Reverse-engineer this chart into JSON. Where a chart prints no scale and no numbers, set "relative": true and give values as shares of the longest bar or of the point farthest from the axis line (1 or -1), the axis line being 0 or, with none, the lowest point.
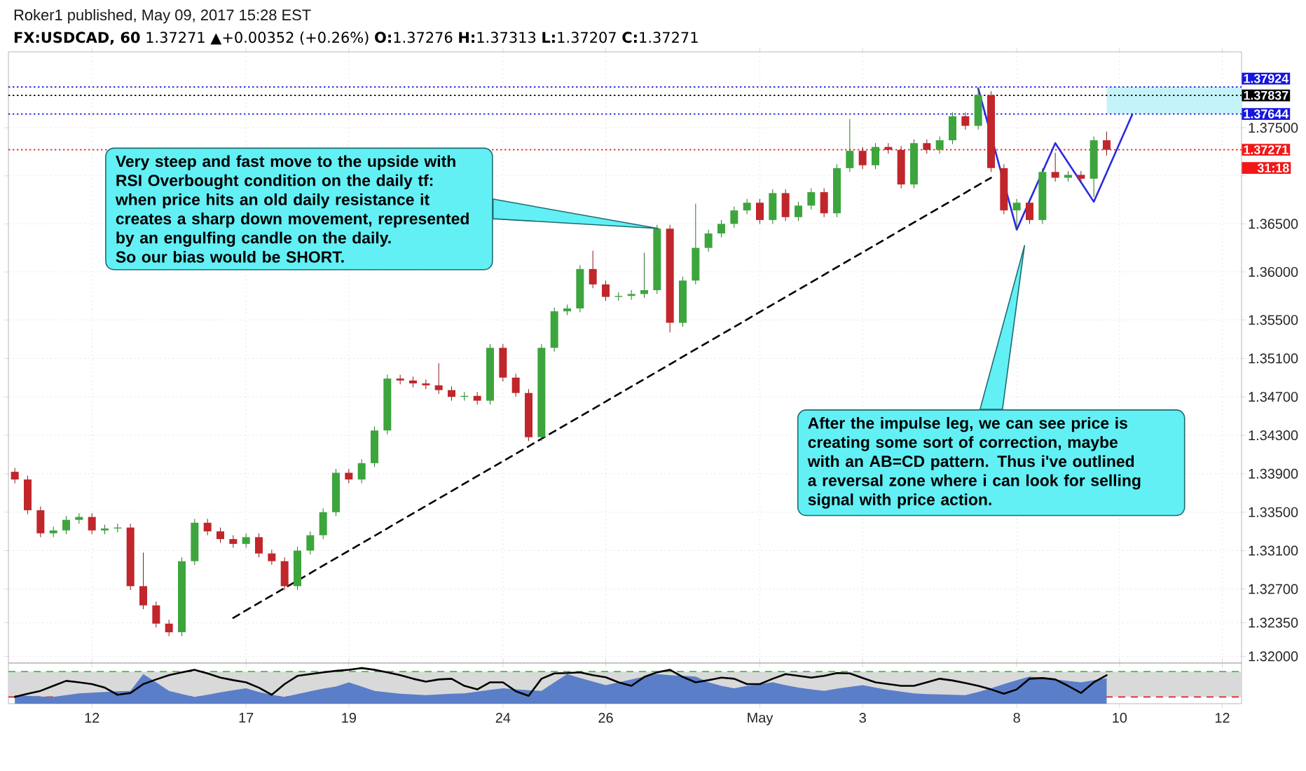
{
  "chart_data": [
    {
      "type": "candlestick",
      "title": "**FX:USDCAD, 60** 1.37271 ▲+0.00352 (+0.26%) **O:**1.37276 **H:**1.37313 **L:**1.37207 **C:**1.37271",
      "subtitle": "Roker1 published, May 09, 2017 15:28 EST",
      "categories": [
        null,
        null,
        null,
        null,
        null,
        null,
        null,
        null,
        null,
        null,
        null,
        null,
        null,
        null,
        null,
        null,
        null,
        null,
        null,
        null,
        null,
        null,
        null,
        null,
        null,
        null,
        null,
        null,
        null,
        null,
        null,
        null,
        null,
        null,
        null,
        null,
        null,
        null,
        null,
        null,
        null,
        null,
        null,
        null,
        null,
        null,
        null,
        null,
        null,
        null,
        null,
        null,
        null,
        null,
        null,
        null,
        null,
        null,
        null,
        null,
        null,
        null,
        null,
        null,
        null,
        null,
        null,
        null,
        null,
        null,
        null,
        null,
        null,
        null,
        null,
        null,
        null,
        null,
        null,
        null,
        null,
        null,
        null,
        null,
        null,
        null,
        null,
        null,
        null,
        null,
        null,
        null,
        null,
        null,
        null,
        null
      ],
      "ohlc": [
        [
          1.3392,
          1.3396,
          1.338,
          1.3384
        ],
        [
          1.3384,
          1.3388,
          1.3348,
          1.3352
        ],
        [
          1.3352,
          1.3356,
          1.3324,
          1.3328
        ],
        [
          1.3328,
          1.3335,
          1.3324,
          1.3331
        ],
        [
          1.3331,
          1.3346,
          1.3327,
          1.3342
        ],
        [
          1.3342,
          1.3349,
          1.3338,
          1.3345
        ],
        [
          1.3345,
          1.3349,
          1.3327,
          1.3331
        ],
        [
          1.3331,
          1.3337,
          1.3327,
          1.3333
        ],
        [
          1.3333,
          1.3338,
          1.3329,
          1.3334
        ],
        [
          1.3334,
          1.3338,
          1.3269,
          1.3273
        ],
        [
          1.3273,
          1.3308,
          1.3249,
          1.3253
        ],
        [
          1.3253,
          1.3257,
          1.323,
          1.3234
        ],
        [
          1.3234,
          1.3238,
          1.3221,
          1.3225
        ],
        [
          1.3225,
          1.3303,
          1.3221,
          1.3299
        ],
        [
          1.3299,
          1.3343,
          1.3295,
          1.3339
        ],
        [
          1.3339,
          1.3343,
          1.3326,
          1.333
        ],
        [
          1.333,
          1.3334,
          1.3318,
          1.3322
        ],
        [
          1.3322,
          1.3326,
          1.3313,
          1.3317
        ],
        [
          1.3317,
          1.3328,
          1.3313,
          1.3324
        ],
        [
          1.3324,
          1.3328,
          1.3303,
          1.3307
        ],
        [
          1.3307,
          1.3311,
          1.3295,
          1.3299
        ],
        [
          1.3299,
          1.3303,
          1.3269,
          1.3273
        ],
        [
          1.3273,
          1.3314,
          1.3269,
          1.331
        ],
        [
          1.331,
          1.333,
          1.3306,
          1.3326
        ],
        [
          1.3326,
          1.3354,
          1.3322,
          1.335
        ],
        [
          1.335,
          1.3395,
          1.3346,
          1.3391
        ],
        [
          1.3391,
          1.3395,
          1.338,
          1.3384
        ],
        [
          1.3384,
          1.3405,
          1.338,
          1.3401
        ],
        [
          1.3401,
          1.3439,
          1.3397,
          1.3435
        ],
        [
          1.3435,
          1.3493,
          1.3431,
          1.3489
        ],
        [
          1.3489,
          1.3493,
          1.3483,
          1.3487
        ],
        [
          1.3487,
          1.3491,
          1.348,
          1.3484
        ],
        [
          1.3484,
          1.3488,
          1.3478,
          1.3482
        ],
        [
          1.3482,
          1.3505,
          1.3473,
          1.3477
        ],
        [
          1.3477,
          1.3481,
          1.3466,
          1.347
        ],
        [
          1.347,
          1.3475,
          1.3466,
          1.3471
        ],
        [
          1.3471,
          1.3475,
          1.3462,
          1.3466
        ],
        [
          1.3466,
          1.3525,
          1.3462,
          1.3521
        ],
        [
          1.3521,
          1.3525,
          1.3486,
          1.349
        ],
        [
          1.349,
          1.3494,
          1.347,
          1.3474
        ],
        [
          1.3474,
          1.3478,
          1.3424,
          1.3428
        ],
        [
          1.3428,
          1.3525,
          1.3424,
          1.3521
        ],
        [
          1.3521,
          1.3563,
          1.3517,
          1.3559
        ],
        [
          1.3559,
          1.3566,
          1.3555,
          1.3562
        ],
        [
          1.3562,
          1.3607,
          1.3558,
          1.3603
        ],
        [
          1.3603,
          1.3622,
          1.3583,
          1.3587
        ],
        [
          1.3587,
          1.3591,
          1.357,
          1.3574
        ],
        [
          1.3574,
          1.3579,
          1.357,
          1.3575
        ],
        [
          1.3575,
          1.3581,
          1.3571,
          1.3577
        ],
        [
          1.3577,
          1.362,
          1.3573,
          1.3581
        ],
        [
          1.3581,
          1.3649,
          1.3577,
          1.3645
        ],
        [
          1.3645,
          1.3649,
          1.3537,
          1.3547
        ],
        [
          1.3547,
          1.3595,
          1.3543,
          1.3591
        ],
        [
          1.3591,
          1.3671,
          1.3587,
          1.3625
        ],
        [
          1.3625,
          1.3644,
          1.3621,
          1.364
        ],
        [
          1.364,
          1.3654,
          1.3636,
          1.365
        ],
        [
          1.365,
          1.3668,
          1.3646,
          1.3664
        ],
        [
          1.3664,
          1.3676,
          1.366,
          1.3672
        ],
        [
          1.3672,
          1.3676,
          1.365,
          1.3654
        ],
        [
          1.3654,
          1.3686,
          1.365,
          1.3682
        ],
        [
          1.3682,
          1.3686,
          1.3653,
          1.3657
        ],
        [
          1.3657,
          1.3673,
          1.3653,
          1.3669
        ],
        [
          1.3669,
          1.3687,
          1.3665,
          1.3683
        ],
        [
          1.3683,
          1.3687,
          1.3657,
          1.3661
        ],
        [
          1.3661,
          1.3712,
          1.3657,
          1.3708
        ],
        [
          1.3708,
          1.3759,
          1.3704,
          1.3726
        ],
        [
          1.3726,
          1.373,
          1.3707,
          1.3711
        ],
        [
          1.3711,
          1.3734,
          1.3707,
          1.373
        ],
        [
          1.373,
          1.3734,
          1.3723,
          1.3727
        ],
        [
          1.3727,
          1.3731,
          1.3687,
          1.3691
        ],
        [
          1.3691,
          1.3738,
          1.3687,
          1.3734
        ],
        [
          1.3734,
          1.3738,
          1.3723,
          1.3727
        ],
        [
          1.3727,
          1.3741,
          1.3723,
          1.3737
        ],
        [
          1.3737,
          1.3766,
          1.3733,
          1.3762
        ],
        [
          1.3762,
          1.3766,
          1.3748,
          1.3752
        ],
        [
          1.3752,
          1.3792,
          1.3748,
          1.3784
        ],
        [
          1.3784,
          1.3788,
          1.3704,
          1.3708
        ],
        [
          1.3708,
          1.3712,
          1.366,
          1.3664
        ],
        [
          1.3664,
          1.3676,
          1.3645,
          1.3672
        ],
        [
          1.3672,
          1.3676,
          1.365,
          1.3654
        ],
        [
          1.3654,
          1.3708,
          1.365,
          1.3704
        ],
        [
          1.3704,
          1.3724,
          1.3694,
          1.3698
        ],
        [
          1.3698,
          1.3705,
          1.3694,
          1.3701
        ],
        [
          1.3701,
          1.3705,
          1.3693,
          1.3697
        ],
        [
          1.3697,
          1.3741,
          1.3678,
          1.3737
        ],
        [
          1.3737,
          1.3746,
          1.3721,
          1.37271
        ],
        null,
        null,
        null,
        null,
        null,
        null,
        null,
        null,
        null,
        null
      ],
      "series": [
        {
          "type": "line",
          "color": "#000000",
          "line_style": "dashed",
          "values": [
            null,
            null,
            null,
            null,
            null,
            null,
            null,
            null,
            null,
            null,
            null,
            null,
            null,
            null,
            null,
            null,
            null,
            1.324,
            null,
            null,
            null,
            null,
            null,
            null,
            null,
            null,
            null,
            null,
            null,
            null,
            null,
            null,
            null,
            null,
            null,
            null,
            null,
            null,
            null,
            null,
            null,
            null,
            null,
            null,
            null,
            null,
            null,
            null,
            null,
            null,
            null,
            null,
            null,
            null,
            null,
            null,
            null,
            null,
            null,
            null,
            null,
            null,
            null,
            null,
            null,
            null,
            null,
            null,
            null,
            null,
            null,
            null,
            null,
            null,
            null,
            null,
            1.3698,
            null,
            null,
            null,
            null,
            null,
            null,
            null,
            null,
            null,
            null,
            null,
            null,
            null,
            null,
            null,
            null,
            null,
            null,
            null
          ]
        },
        {
          "type": "line",
          "color": "#2a2ae0",
          "line_style": "solid",
          "values": [
            null,
            null,
            null,
            null,
            null,
            null,
            null,
            null,
            null,
            null,
            null,
            null,
            null,
            null,
            null,
            null,
            null,
            null,
            null,
            null,
            null,
            null,
            null,
            null,
            null,
            null,
            null,
            null,
            null,
            null,
            null,
            null,
            null,
            null,
            null,
            null,
            null,
            null,
            null,
            null,
            null,
            null,
            null,
            null,
            null,
            null,
            null,
            null,
            null,
            null,
            null,
            null,
            null,
            null,
            null,
            null,
            null,
            null,
            null,
            null,
            null,
            null,
            null,
            null,
            null,
            null,
            null,
            null,
            null,
            null,
            null,
            null,
            null,
            null,
            null,
            1.3791,
            null,
            null,
            1.3644,
            null,
            null,
            1.3734,
            null,
            null,
            1.3673,
            null,
            null,
            1.3764,
            null,
            null,
            null,
            null,
            null,
            null,
            null,
            null
          ]
        }
      ],
      "ylim": [
        1.3193,
        1.3829
      ],
      "yticks": [
        {
          "value": 1.32,
          "label": "1.32000"
        },
        {
          "value": 1.3235,
          "label": "1.32350"
        },
        {
          "value": 1.327,
          "label": "1.32700"
        },
        {
          "value": 1.331,
          "label": "1.33100"
        },
        {
          "value": 1.335,
          "label": "1.33500"
        },
        {
          "value": 1.339,
          "label": "1.33900"
        },
        {
          "value": 1.343,
          "label": "1.34300"
        },
        {
          "value": 1.347,
          "label": "1.34700"
        },
        {
          "value": 1.351,
          "label": "1.35100"
        },
        {
          "value": 1.355,
          "label": "1.35500"
        },
        {
          "value": 1.36,
          "label": "1.36000"
        },
        {
          "value": 1.365,
          "label": "1.36500"
        },
        {
          "value": 1.37,
          "label": null
        },
        {
          "value": 1.375,
          "label": "1.37500"
        }
      ],
      "tick_labels": "y",
      "grid": true,
      "ref_lines": [
        {
          "axis": "y",
          "value": 1.37924,
          "label": "1.37924",
          "color": "#1515e0",
          "line_style": "dotted"
        },
        {
          "axis": "y",
          "value": 1.37837,
          "label": "1.37837",
          "color": "#000000",
          "line_style": "dotted"
        },
        {
          "axis": "y",
          "value": 1.37644,
          "label": "1.37644",
          "color": "#1515e0",
          "line_style": "dotted"
        },
        {
          "axis": "y",
          "value": 1.37271,
          "label": "1.37271",
          "color": "#f01818",
          "line_style": "dotted"
        }
      ],
      "bands": [
        {
          "axis": "y",
          "from": 1.37644,
          "to": 1.37924,
          "color": "#c4f4fa"
        }
      ],
      "annotations": [
        "Very steep and fast move to the upside with RSI Overbought condition on the daily tf: when price hits an old daily resistance it creates a sharp down movement, represented by an engulfing candle on the daily.\nSo our bias would be SHORT.",
        "After the impulse leg, we can see price is creating some sort of correction, maybe with an AB=CD pattern. Thus i've outlined a reversal zone where i can look for selling signal with price action.",
        "31:18"
      ]
    },
    {
      "type": "line",
      "relative": true,
      "categories": [
        null,
        null,
        null,
        null,
        null,
        null,
        "12",
        null,
        null,
        null,
        null,
        null,
        null,
        null,
        null,
        null,
        null,
        null,
        "17",
        null,
        null,
        null,
        null,
        null,
        null,
        null,
        "19",
        null,
        null,
        null,
        null,
        null,
        null,
        null,
        null,
        null,
        null,
        null,
        "24",
        null,
        null,
        null,
        null,
        null,
        null,
        null,
        "26",
        null,
        null,
        null,
        null,
        null,
        null,
        null,
        null,
        null,
        null,
        null,
        "May",
        null,
        null,
        null,
        null,
        null,
        null,
        null,
        "3",
        null,
        null,
        null,
        null,
        null,
        null,
        null,
        null,
        null,
        null,
        null,
        "8",
        null,
        null,
        null,
        null,
        null,
        null,
        null,
        "10",
        null,
        null,
        null,
        null,
        null,
        null,
        null,
        "12",
        null
      ],
      "tick_labels": "x",
      "series": [
        {
          "type": "area",
          "color": "#5b7ec8",
          "values": [
            0.24,
            0.22,
            0.2,
            0.19,
            0.24,
            0.29,
            0.31,
            0.33,
            0.35,
            0.36,
            0.83,
            0.6,
            0.36,
            0.27,
            0.19,
            0.25,
            0.32,
            0.38,
            0.43,
            0.33,
            0.25,
            0.19,
            0.27,
            0.35,
            0.42,
            0.48,
            0.6,
            0.48,
            0.36,
            0.32,
            0.28,
            0.26,
            0.24,
            0.26,
            0.28,
            0.29,
            0.34,
            0.39,
            0.43,
            0.4,
            0.38,
            0.36,
            0.6,
            0.83,
            0.72,
            0.62,
            0.52,
            0.6,
            0.68,
            0.76,
            0.83,
            0.8,
            0.78,
            0.76,
            0.6,
            0.5,
            0.43,
            0.5,
            0.55,
            0.6,
            0.52,
            0.45,
            0.4,
            0.36,
            0.42,
            0.47,
            0.52,
            0.45,
            0.39,
            0.34,
            0.29,
            0.27,
            0.26,
            0.25,
            0.24,
            0.33,
            0.43,
            0.55,
            0.66,
            0.76,
            0.72,
            0.68,
            0.64,
            0.6,
            0.66,
            0.71,
            null,
            null,
            null,
            null,
            null,
            null,
            null,
            null,
            null,
            null
          ]
        },
        {
          "type": "line",
          "color": "#000000",
          "values": [
            0.19,
            0.28,
            0.36,
            0.5,
            0.64,
            0.6,
            0.55,
            0.45,
            0.25,
            0.3,
            0.55,
            0.68,
            0.8,
            0.88,
            0.95,
            0.85,
            0.73,
            0.66,
            0.6,
            0.45,
            0.25,
            0.55,
            0.78,
            0.83,
            0.88,
            0.92,
            0.95,
            1,
            0.95,
            0.88,
            0.8,
            0.7,
            0.62,
            0.68,
            0.7,
            0.5,
            0.4,
            0.6,
            0.6,
            0.35,
            0.22,
            0.7,
            0.85,
            0.86,
            0.88,
            0.8,
            0.74,
            0.6,
            0.5,
            0.75,
            0.88,
            0.95,
            0.75,
            0.6,
            0.66,
            0.73,
            0.7,
            0.55,
            0.55,
            0.7,
            0.83,
            0.78,
            0.73,
            0.78,
            0.86,
            0.85,
            0.72,
            0.6,
            0.55,
            0.5,
            0.5,
            0.6,
            0.7,
            0.65,
            0.58,
            0.5,
            0.4,
            0.28,
            0.4,
            0.7,
            0.72,
            0.68,
            0.5,
            0.3,
            0.6,
            0.8,
            null,
            null,
            null,
            null,
            null,
            null,
            null,
            null,
            null,
            null
          ]
        }
      ],
      "ref_lines": [
        {
          "axis": "y",
          "value": 0.9,
          "color": "#2ecc2e",
          "line_style": "dashed"
        },
        {
          "axis": "y",
          "value": 0.19,
          "color": "#e02020",
          "line_style": "dashed"
        }
      ],
      "bands": [
        {
          "axis": "y",
          "from": 0.19,
          "to": 0.9,
          "color": "#d9d9d9"
        }
      ]
    }
  ]
}
